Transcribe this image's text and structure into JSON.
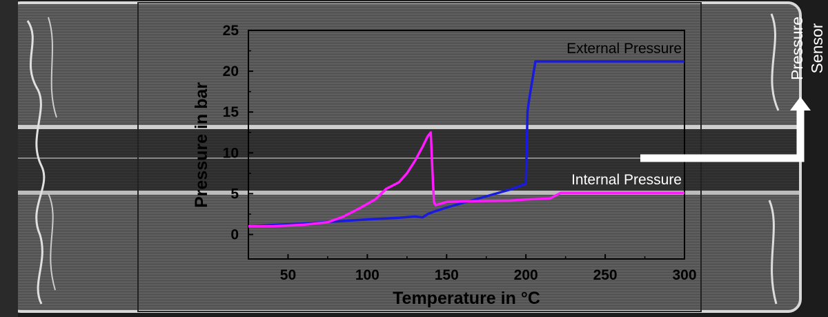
{
  "colors": {
    "external": "#1a1adf",
    "internal": "#ff1aff",
    "background_gray": "#5a5a5a",
    "sensor_arrow": "#ffffff"
  },
  "background": {
    "icon": "x-ray-ct-cell-image"
  },
  "sensor_label": [
    "Pressure",
    "Sensor"
  ],
  "chart_data": {
    "type": "line",
    "xlabel": "Temperature in °C",
    "ylabel": "Pressure in bar",
    "xlim": [
      25,
      300
    ],
    "ylim": [
      -3,
      25
    ],
    "xticks": [
      50,
      100,
      150,
      200,
      250,
      300
    ],
    "yticks": [
      0,
      5,
      10,
      15,
      20,
      25
    ],
    "grid": false,
    "series": [
      {
        "name": "External Pressure",
        "color": "#1a1adf",
        "x": [
          25,
          40,
          60,
          80,
          100,
          120,
          130,
          135,
          138,
          142,
          150,
          170,
          190,
          200,
          201,
          202,
          206,
          210,
          230,
          260,
          300
        ],
        "y": [
          1.0,
          1.15,
          1.35,
          1.6,
          1.85,
          2.05,
          2.2,
          2.1,
          2.5,
          2.8,
          3.3,
          4.4,
          5.5,
          6.2,
          15.0,
          16.5,
          21.2,
          21.2,
          21.2,
          21.2,
          21.2
        ]
      },
      {
        "name": "Internal Pressure",
        "color": "#ff1aff",
        "x": [
          25,
          40,
          60,
          75,
          85,
          95,
          105,
          112,
          115,
          120,
          125,
          130,
          135,
          138,
          140,
          141,
          142,
          143,
          145,
          150,
          170,
          190,
          200,
          215,
          222,
          240,
          300
        ],
        "y": [
          1.0,
          1.0,
          1.2,
          1.5,
          2.2,
          3.2,
          4.3,
          5.6,
          5.9,
          6.4,
          7.5,
          9.0,
          10.8,
          12.0,
          12.5,
          8.0,
          4.0,
          3.6,
          3.7,
          4.0,
          4.1,
          4.15,
          4.3,
          4.4,
          5.1,
          5.1,
          5.1
        ]
      }
    ]
  }
}
